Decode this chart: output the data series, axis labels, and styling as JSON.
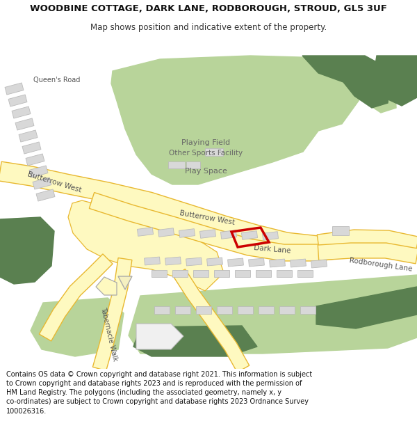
{
  "title": "WOODBINE COTTAGE, DARK LANE, RODBOROUGH, STROUD, GL5 3UF",
  "subtitle": "Map shows position and indicative extent of the property.",
  "footer": "Contains OS data © Crown copyright and database right 2021. This information is subject\nto Crown copyright and database rights 2023 and is reproduced with the permission of\nHM Land Registry. The polygons (including the associated geometry, namely x, y\nco-ordinates) are subject to Crown copyright and database rights 2023 Ordnance Survey\n100026316.",
  "bg_color": "#ffffff",
  "map_bg": "#f5f5f0",
  "road_fill": "#fef9c0",
  "road_stroke": "#e8b830",
  "green_light": "#b8d49a",
  "green_dark": "#5a8050",
  "building_fill": "#d8d8d8",
  "building_stroke": "#bbbbbb",
  "property_color": "#cc0000",
  "text_road": "#555555",
  "text_land": "#666666",
  "title_fontsize": 9.5,
  "subtitle_fontsize": 8.5,
  "footer_fontsize": 7.0
}
